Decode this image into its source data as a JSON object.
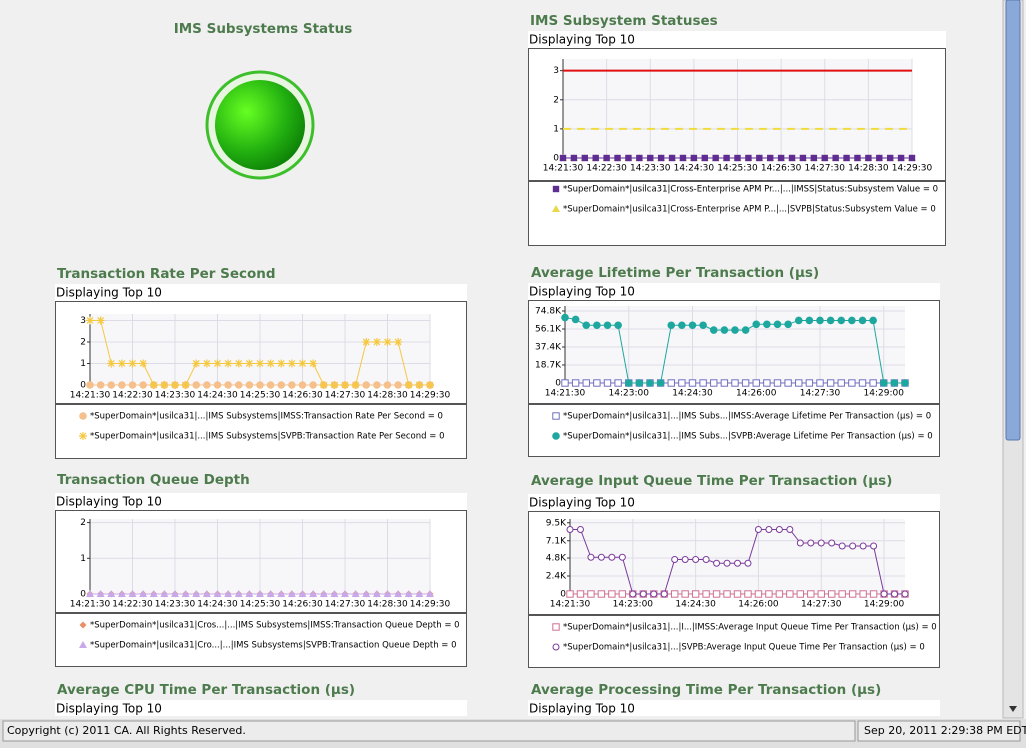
{
  "status_panel": {
    "title": "IMS Subsystems Status"
  },
  "footer": {
    "copyright": "Copyright (c) 2011 CA. All Rights Reserved.",
    "timestamp": "Sep 20, 2011 2:29:38 PM EDT"
  },
  "chart_data": [
    {
      "type": "line",
      "title": "IMS Subsystem Statuses",
      "subtitle": "Displaying Top 10",
      "categories": [
        "14:21:30",
        null,
        null,
        null,
        "14:22:30",
        null,
        null,
        null,
        "14:23:30",
        null,
        null,
        null,
        "14:24:30",
        null,
        null,
        null,
        "14:25:30",
        null,
        null,
        null,
        "14:26:30",
        null,
        null,
        null,
        "14:27:30",
        null,
        null,
        null,
        "14:28:30",
        null,
        null,
        null,
        "14:29:30"
      ],
      "ylim": [
        0,
        3.4
      ],
      "yticks": [
        0,
        1,
        2,
        3
      ],
      "grid": true,
      "reference_lines": [
        {
          "value": 3,
          "color": "#e01010"
        },
        {
          "value": 1,
          "color": "#f2dc3c",
          "dashed": true
        }
      ],
      "series": [
        {
          "name": "*SuperDomain*|usilca31|Cross-Enterprise APM Pr...|...|IMSS|Status:Subsystem Value = 0",
          "color": "#5f2d91",
          "marker": "square",
          "values": [
            0,
            0,
            0,
            0,
            0,
            0,
            0,
            0,
            0,
            0,
            0,
            0,
            0,
            0,
            0,
            0,
            0,
            0,
            0,
            0,
            0,
            0,
            0,
            0,
            0,
            0,
            0,
            0,
            0,
            0,
            0,
            0,
            0
          ]
        },
        {
          "name": "*SuperDomain*|usilca31|Cross-Enterprise APM P...|...|SVPB|Status:Subsystem Value = 0",
          "color": "#e8d84a",
          "marker": "triangle",
          "hidden_under": true,
          "values": [
            0,
            0,
            0,
            0,
            0,
            0,
            0,
            0,
            0,
            0,
            0,
            0,
            0,
            0,
            0,
            0,
            0,
            0,
            0,
            0,
            0,
            0,
            0,
            0,
            0,
            0,
            0,
            0,
            0,
            0,
            0,
            0,
            0
          ]
        }
      ]
    },
    {
      "type": "line",
      "title": "Transaction Rate Per Second",
      "subtitle": "Displaying Top 10",
      "categories": [
        "14:21:30",
        null,
        null,
        null,
        "14:22:30",
        null,
        null,
        null,
        "14:23:30",
        null,
        null,
        null,
        "14:24:30",
        null,
        null,
        null,
        "14:25:30",
        null,
        null,
        null,
        "14:26:30",
        null,
        null,
        null,
        "14:27:30",
        null,
        null,
        null,
        "14:28:30",
        null,
        null,
        null,
        "14:29:30"
      ],
      "ylim": [
        0,
        3.3
      ],
      "yticks": [
        0,
        1,
        2,
        3
      ],
      "grid": true,
      "series": [
        {
          "name": "*SuperDomain*|usilca31|...|IMS Subsystems|IMSS:Transaction Rate Per Second = 0",
          "color": "#f5c08c",
          "marker": "circle",
          "values": [
            0,
            0,
            0,
            0,
            0,
            0,
            0,
            0,
            0,
            0,
            0,
            0,
            0,
            0,
            0,
            0,
            0,
            0,
            0,
            0,
            0,
            0,
            0,
            0,
            0,
            0,
            0,
            0,
            0,
            0,
            0,
            0,
            0
          ]
        },
        {
          "name": "*SuperDomain*|usilca31|...|IMS Subsystems|SVPB:Transaction Rate Per Second = 0",
          "color": "#f5c842",
          "marker": "star",
          "values": [
            3,
            3,
            1,
            1,
            1,
            1,
            0,
            0,
            0,
            0,
            1,
            1,
            1,
            1,
            1,
            1,
            1,
            1,
            1,
            1,
            1,
            1,
            0,
            0,
            0,
            0,
            2,
            2,
            2,
            2,
            0,
            0,
            0
          ]
        }
      ]
    },
    {
      "type": "line",
      "title": "Average Lifetime Per Transaction (μs)",
      "subtitle": "Displaying Top 10",
      "categories": [
        "14:21:30",
        null,
        null,
        null,
        null,
        null,
        "14:23:00",
        null,
        null,
        null,
        null,
        null,
        "14:24:30",
        null,
        null,
        null,
        null,
        null,
        "14:26:00",
        null,
        null,
        null,
        null,
        null,
        "14:27:30",
        null,
        null,
        null,
        null,
        null,
        "14:29:00",
        null,
        null
      ],
      "ylim": [
        0,
        80000
      ],
      "yticks": [
        0,
        {
          "value": 18700,
          "label": "18.7K"
        },
        {
          "value": 37400,
          "label": "37.4K"
        },
        {
          "value": 56100,
          "label": "56.1K"
        },
        {
          "value": 74800,
          "label": "74.8K"
        }
      ],
      "grid": true,
      "series": [
        {
          "name": "*SuperDomain*|usilca31|...|IMS Subs...|IMSS:Average Lifetime Per Transaction (μs) = 0",
          "color": "#7070c0",
          "marker": "open-square",
          "values": [
            0,
            0,
            0,
            0,
            0,
            0,
            0,
            0,
            0,
            0,
            0,
            0,
            0,
            0,
            0,
            0,
            0,
            0,
            0,
            0,
            0,
            0,
            0,
            0,
            0,
            0,
            0,
            0,
            0,
            0,
            0,
            0,
            0
          ]
        },
        {
          "name": "*SuperDomain*|usilca31|...|IMS Subs...|SVPB:Average Lifetime Per Transaction (μs) = 0",
          "color": "#1ea79f",
          "marker": "circle",
          "values": [
            68000,
            66000,
            60000,
            60000,
            60000,
            60000,
            0,
            0,
            0,
            0,
            60000,
            60000,
            60000,
            60000,
            55000,
            55000,
            55000,
            55000,
            61000,
            61000,
            61000,
            61000,
            65000,
            65000,
            65000,
            65000,
            65000,
            65000,
            65000,
            65000,
            0,
            0,
            0
          ]
        }
      ]
    },
    {
      "type": "line",
      "title": "Transaction Queue Depth",
      "subtitle": "Displaying Top 10",
      "categories": [
        "14:21:30",
        null,
        null,
        null,
        "14:22:30",
        null,
        null,
        null,
        "14:23:30",
        null,
        null,
        null,
        "14:24:30",
        null,
        null,
        null,
        "14:25:30",
        null,
        null,
        null,
        "14:26:30",
        null,
        null,
        null,
        "14:27:30",
        null,
        null,
        null,
        "14:28:30",
        null,
        null,
        null,
        "14:29:30"
      ],
      "ylim": [
        0,
        2.1
      ],
      "yticks": [
        0,
        1,
        2
      ],
      "grid": true,
      "series": [
        {
          "name": "*SuperDomain*|usilca31|Cros...|...|IMS Subsystems|IMSS:Transaction Queue Depth = 0",
          "color": "#e8906a",
          "marker": "diamond",
          "values": [
            0,
            0,
            0,
            0,
            0,
            0,
            0,
            0,
            0,
            0,
            0,
            0,
            0,
            0,
            0,
            0,
            0,
            0,
            0,
            0,
            0,
            0,
            0,
            0,
            0,
            0,
            0,
            0,
            0,
            0,
            0,
            0,
            0
          ]
        },
        {
          "name": "*SuperDomain*|usilca31|Cro...|...|IMS Subsystems|SVPB:Transaction Queue Depth = 0",
          "color": "#c8a8e8",
          "marker": "triangle",
          "values": [
            0,
            0,
            0,
            0,
            0,
            0,
            0,
            0,
            0,
            0,
            0,
            0,
            0,
            0,
            0,
            0,
            0,
            0,
            0,
            0,
            0,
            0,
            0,
            0,
            0,
            0,
            0,
            0,
            0,
            0,
            0,
            0,
            0
          ]
        }
      ]
    },
    {
      "type": "line",
      "title": "Average Input Queue Time Per Transaction (μs)",
      "subtitle": "Displaying Top 10",
      "categories": [
        "14:21:30",
        null,
        null,
        null,
        null,
        null,
        "14:23:00",
        null,
        null,
        null,
        null,
        null,
        "14:24:30",
        null,
        null,
        null,
        null,
        null,
        "14:26:00",
        null,
        null,
        null,
        null,
        null,
        "14:27:30",
        null,
        null,
        null,
        null,
        null,
        "14:29:00",
        null,
        null
      ],
      "ylim": [
        0,
        10000
      ],
      "yticks": [
        0,
        {
          "value": 2400,
          "label": "2.4K"
        },
        {
          "value": 4800,
          "label": "4.8K"
        },
        {
          "value": 7100,
          "label": "7.1K"
        },
        {
          "value": 9500,
          "label": "9.5K"
        }
      ],
      "grid": true,
      "series": [
        {
          "name": "*SuperDomain*|usilca31|...|I...|IMSS:Average Input Queue Time Per Transaction (μs) = 0",
          "color": "#d07090",
          "marker": "open-square",
          "values": [
            0,
            0,
            0,
            0,
            0,
            0,
            0,
            0,
            0,
            0,
            0,
            0,
            0,
            0,
            0,
            0,
            0,
            0,
            0,
            0,
            0,
            0,
            0,
            0,
            0,
            0,
            0,
            0,
            0,
            0,
            0,
            0,
            0
          ]
        },
        {
          "name": "*SuperDomain*|usilca31|...|SVPB:Average Input Queue Time Per Transaction (μs) = 0",
          "color": "#7a3a9a",
          "marker": "open-circle",
          "values": [
            8600,
            8600,
            4900,
            4900,
            4900,
            4900,
            0,
            0,
            0,
            0,
            4600,
            4600,
            4600,
            4600,
            4100,
            4100,
            4100,
            4100,
            8600,
            8600,
            8600,
            8600,
            6800,
            6800,
            6800,
            6800,
            6400,
            6400,
            6400,
            6400,
            0,
            0,
            0
          ]
        }
      ]
    },
    {
      "type": "line",
      "title": "Average CPU Time Per Transaction (μs)",
      "subtitle": "Displaying Top 10"
    },
    {
      "type": "line",
      "title": "Average Processing Time Per Transaction (μs)",
      "subtitle": "Displaying Top 10"
    }
  ]
}
